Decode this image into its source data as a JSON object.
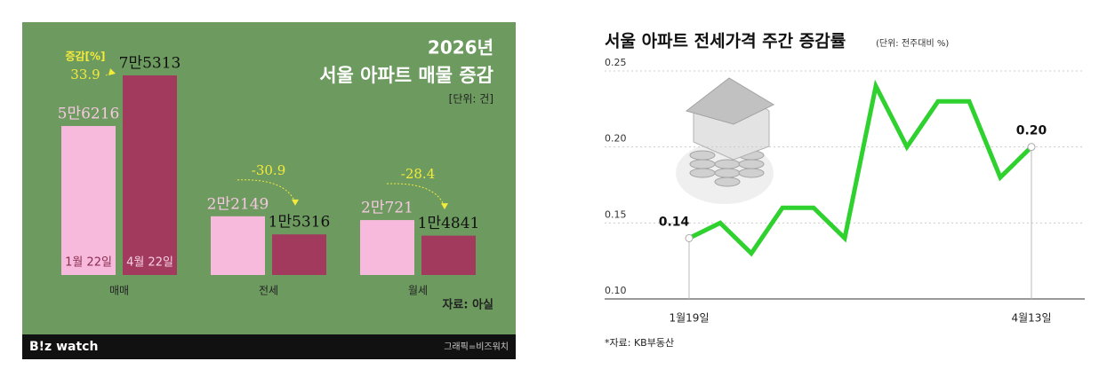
{
  "charts": [
    {
      "chart_data": {
        "type": "bar",
        "title_year": "2026년",
        "title": "서울 아파트 매물 증감",
        "unit": "[단위: 건]",
        "categories": [
          "매매",
          "전세",
          "월세"
        ],
        "series": [
          {
            "name": "1월 22일",
            "color": "#f7b9dc",
            "values": [
              56216,
              22149,
              20721
            ],
            "value_labels": [
              "5만6216",
              "2만2149",
              "2만721"
            ]
          },
          {
            "name": "4월 22일",
            "color": "#a23a5e",
            "values": [
              75313,
              15316,
              14841
            ],
            "value_labels": [
              "7만5313",
              "1만5316",
              "1만4841"
            ]
          }
        ],
        "change_label": "증감[%]",
        "changes": [
          33.9,
          -30.9,
          -28.4
        ],
        "source": "자료: 아실",
        "brand": "B!z watch",
        "credit": "그래픽=비즈워치"
      }
    },
    {
      "chart_data": {
        "type": "line",
        "title": "서울 아파트 전세가격 주간 증감률",
        "unit": "(단위: 전주대비 %)",
        "categories": [
          "1월19일",
          null,
          null,
          null,
          null,
          null,
          null,
          null,
          null,
          null,
          null,
          "4월13일"
        ],
        "series": [
          {
            "name": "전세가격 증감률",
            "color": "#2fd12f",
            "values": [
              0.14,
              0.15,
              0.13,
              0.16,
              0.16,
              0.14,
              0.24,
              0.2,
              0.23,
              0.23,
              0.18,
              0.2
            ],
            "value_labels": [
              "0.14",
              null,
              null,
              null,
              null,
              null,
              null,
              null,
              null,
              null,
              null,
              "0.20"
            ]
          }
        ],
        "ylim": [
          0.1,
          0.25
        ],
        "yticks": [
          {
            "value": 0.1,
            "label": "0.10"
          },
          {
            "value": 0.15,
            "label": "0.15"
          },
          {
            "value": 0.2,
            "label": "0.20"
          },
          {
            "value": 0.25,
            "label": "0.25"
          }
        ],
        "grid": true,
        "source": "*자료: KB부동산"
      }
    }
  ]
}
